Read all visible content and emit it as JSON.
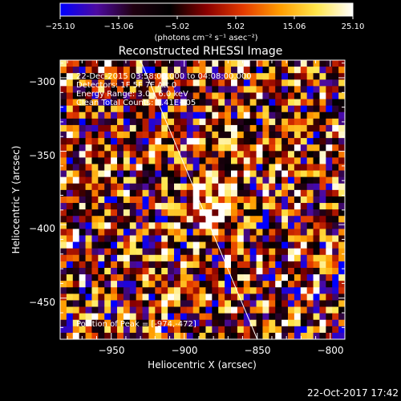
{
  "chart_data": {
    "type": "heatmap",
    "title": "Reconstructed RHESSI Image",
    "xlabel": "Heliocentric X (arcsec)",
    "ylabel": "Heliocentric Y (arcsec)",
    "xlim": [
      -985,
      -790
    ],
    "ylim": [
      -478,
      -288
    ],
    "x_ticks": [
      -950,
      -900,
      -850,
      -800
    ],
    "y_ticks": [
      -300,
      -350,
      -400,
      -450
    ],
    "x_tick_labels": [
      "−950",
      "−900",
      "−850",
      "−800"
    ],
    "y_tick_labels": [
      "−300",
      "−350",
      "−400",
      "−450"
    ],
    "annotations": [
      "22-Dec-2015 03:58:00.000 to 04:08:00.000",
      "Detectors: 1F 5F 7F  Att 0",
      "Energy Range: 3.0 - 6.0 keV",
      "Clean    Total Counts: 1.41E+05"
    ],
    "peak_label": "Position of Peak = [-974,-472]",
    "peak": [
      -974,
      -472
    ],
    "limb_line": [
      [
        -930,
        -288
      ],
      [
        -850,
        -478
      ]
    ],
    "source_center": [
      -880,
      -380
    ],
    "grid_cells_x": 45,
    "grid_cells_y": 43,
    "colorbar": {
      "min": -25.1,
      "max": 25.1,
      "ticks": [
        "−25.10",
        "−15.06",
        "−5.02",
        "5.02",
        "15.06",
        "25.10"
      ],
      "unit_label": "(photons cm⁻² s⁻¹ asec⁻²)",
      "colors": [
        "#0000ff",
        "#4d0aa0",
        "#200010",
        "#000000",
        "#8a0000",
        "#e43a00",
        "#ff9c00",
        "#ffe64b",
        "#ffffff"
      ]
    },
    "footer_date": "22-Oct-2017 17:42"
  }
}
